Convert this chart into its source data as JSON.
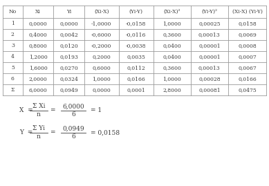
{
  "headers": [
    "No",
    "Xi",
    "Yi",
    "(Xi-X)",
    "(Yi-Y)",
    "(Xi-X)²",
    "(Yi-Y)²",
    "(Xi-X) (Yi-Y)"
  ],
  "rows": [
    [
      "1",
      "0,0000",
      "0,0000",
      "-1,0000",
      "-0,0158",
      "1,0000",
      "0,00025",
      "0,0158"
    ],
    [
      "2",
      "0,4000",
      "0,0042",
      "-0,6000",
      "-0,0116",
      "0,3600",
      "0,00013",
      "0,0069"
    ],
    [
      "3",
      "0,8000",
      "0,0120",
      "-0,2000",
      "-0,0038",
      "0,0400",
      "0,00001",
      "0,0008"
    ],
    [
      "4",
      "1,2000",
      "0,0193",
      "0,2000",
      "0,0035",
      "0,0400",
      "0,00001",
      "0,0007"
    ],
    [
      "5",
      "1,6000",
      "0,0270",
      "0,6000",
      "0,0112",
      "0,3600",
      "0,00013",
      "0,0067"
    ],
    [
      "6",
      "2,0000",
      "0,0324",
      "1,0000",
      "0,0166",
      "1,0000",
      "0,00028",
      "0,0166"
    ],
    [
      "Σ",
      "6,0000",
      "0,0949",
      "0,0000",
      "0,0001",
      "2,8000",
      "0,00081",
      "0,0475"
    ]
  ],
  "formula1_num": "Σ Xi",
  "formula1_den": "n",
  "formula1_num2": "6,0000",
  "formula1_den2": "6",
  "formula1_right": "= 1",
  "formula2_num": "Σ Yi",
  "formula2_den": "n",
  "formula2_num2": "0,0949",
  "formula2_den2": "6",
  "formula2_right": "= 0,0158",
  "bg_color": "#ffffff",
  "text_color": "#3d3d3d",
  "border_color": "#999999",
  "font_size": 5.5,
  "header_font_size": 5.5
}
